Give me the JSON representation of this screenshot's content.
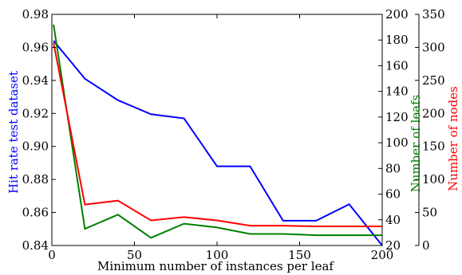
{
  "chart_data": {
    "type": "line",
    "xlabel": "Minimum number of instances per leaf",
    "xlim": [
      0,
      200
    ],
    "xticks": [
      "0",
      "50",
      "100",
      "150",
      "200"
    ],
    "axes": {
      "left": {
        "label": "Hit rate test dataset",
        "color": "#0000ff",
        "ylim": [
          0.84,
          0.98
        ],
        "ticks": [
          "0.84",
          "0.86",
          "0.88",
          "0.90",
          "0.92",
          "0.94",
          "0.96",
          "0.98"
        ]
      },
      "right_inner": {
        "label": "Number of leafs",
        "color": "#008000",
        "ylim": [
          20,
          200
        ],
        "ticks": [
          "20",
          "40",
          "60",
          "80",
          "100",
          "120",
          "140",
          "160",
          "180",
          "200"
        ]
      },
      "right_outer": {
        "label": "Number of nodes",
        "color": "#ff0000",
        "ylim": [
          0,
          350
        ],
        "ticks": [
          "0",
          "50",
          "100",
          "150",
          "200",
          "250",
          "300",
          "350"
        ]
      }
    },
    "series": [
      {
        "axis": "left",
        "color": "#0000ff",
        "x": [
          1,
          20,
          40,
          60,
          80,
          100,
          120,
          140,
          160,
          180,
          200
        ],
        "y": [
          0.964,
          0.941,
          0.928,
          0.9195,
          0.917,
          0.888,
          0.888,
          0.855,
          0.855,
          0.865,
          0.84
        ]
      },
      {
        "axis": "right_inner",
        "color": "#008000",
        "x": [
          1,
          20,
          40,
          60,
          80,
          100,
          120,
          140,
          160,
          180,
          200
        ],
        "y": [
          192,
          33,
          44,
          26,
          37,
          34,
          29,
          29,
          28,
          28,
          28
        ]
      },
      {
        "axis": "right_outer",
        "color": "#ff0000",
        "x": [
          1,
          20,
          40,
          60,
          80,
          100,
          120,
          140,
          160,
          180,
          200
        ],
        "y": [
          307,
          62,
          68,
          38,
          43,
          38,
          30,
          30,
          29,
          29,
          29
        ]
      }
    ]
  }
}
